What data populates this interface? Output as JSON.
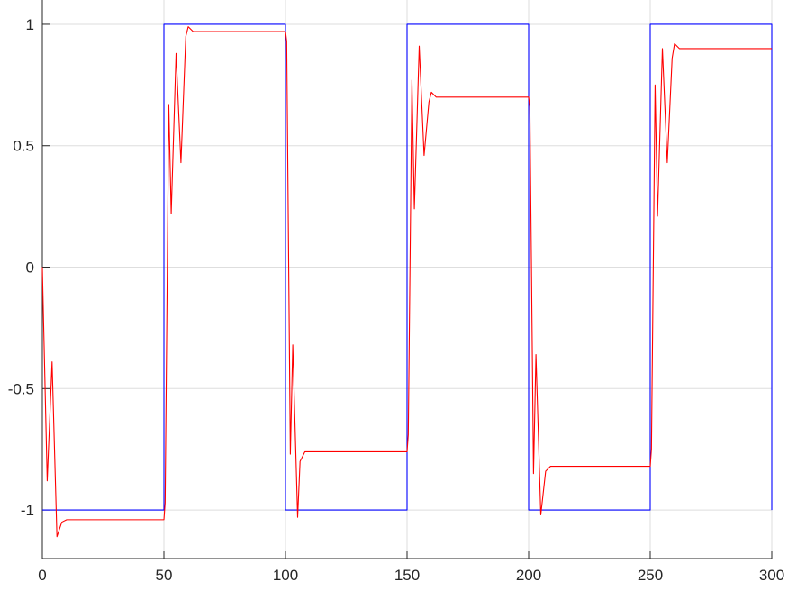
{
  "chart_data": {
    "type": "line",
    "title": "",
    "xlabel": "",
    "ylabel": "",
    "xlim": [
      0,
      300
    ],
    "ylim": [
      -1.2,
      1.1
    ],
    "grid": true,
    "x_ticks": [
      0,
      50,
      100,
      150,
      200,
      250,
      300
    ],
    "x_tick_labels": [
      "0",
      "50",
      "100",
      "150",
      "200",
      "250",
      "300"
    ],
    "y_ticks": [
      1,
      0.5,
      0,
      -0.5,
      -1
    ],
    "y_tick_labels": [
      "1",
      "0.5",
      "0",
      "-0.5",
      "-1"
    ],
    "series": [
      {
        "color": "#0000ff",
        "style": "step",
        "x": [
          0,
          50,
          50,
          100,
          100,
          150,
          150,
          200,
          200,
          250,
          250,
          300,
          300
        ],
        "y": [
          -1,
          -1,
          1,
          1,
          -1,
          -1,
          1,
          1,
          -1,
          -1,
          1,
          1,
          -1
        ]
      },
      {
        "color": "#ff0000",
        "style": "line",
        "x": [
          0,
          2,
          4,
          6,
          8,
          10,
          20,
          50,
          50.5,
          52,
          53,
          55,
          57,
          59,
          60,
          62,
          70,
          100,
          100.5,
          102,
          103,
          105,
          106,
          108,
          110,
          120,
          150,
          150.5,
          152,
          153,
          155,
          157,
          159,
          160,
          162,
          170,
          200,
          200.5,
          202,
          203,
          205,
          207,
          209,
          210,
          212,
          220,
          250,
          250.5,
          252,
          253,
          255,
          257,
          259,
          260,
          262,
          270,
          300
        ],
        "y": [
          0,
          -0.88,
          -0.39,
          -1.11,
          -1.05,
          -1.04,
          -1.04,
          -1.04,
          -0.97,
          0.67,
          0.22,
          0.88,
          0.43,
          0.95,
          0.99,
          0.97,
          0.97,
          0.97,
          0.93,
          -0.77,
          -0.32,
          -1.03,
          -0.8,
          -0.76,
          -0.76,
          -0.76,
          -0.76,
          -0.69,
          0.77,
          0.24,
          0.91,
          0.46,
          0.68,
          0.72,
          0.7,
          0.7,
          0.7,
          0.66,
          -0.85,
          -0.36,
          -1.02,
          -0.84,
          -0.82,
          -0.82,
          -0.82,
          -0.82,
          -0.82,
          -0.75,
          0.75,
          0.21,
          0.9,
          0.43,
          0.86,
          0.92,
          0.9,
          0.9,
          0.9
        ]
      }
    ]
  }
}
